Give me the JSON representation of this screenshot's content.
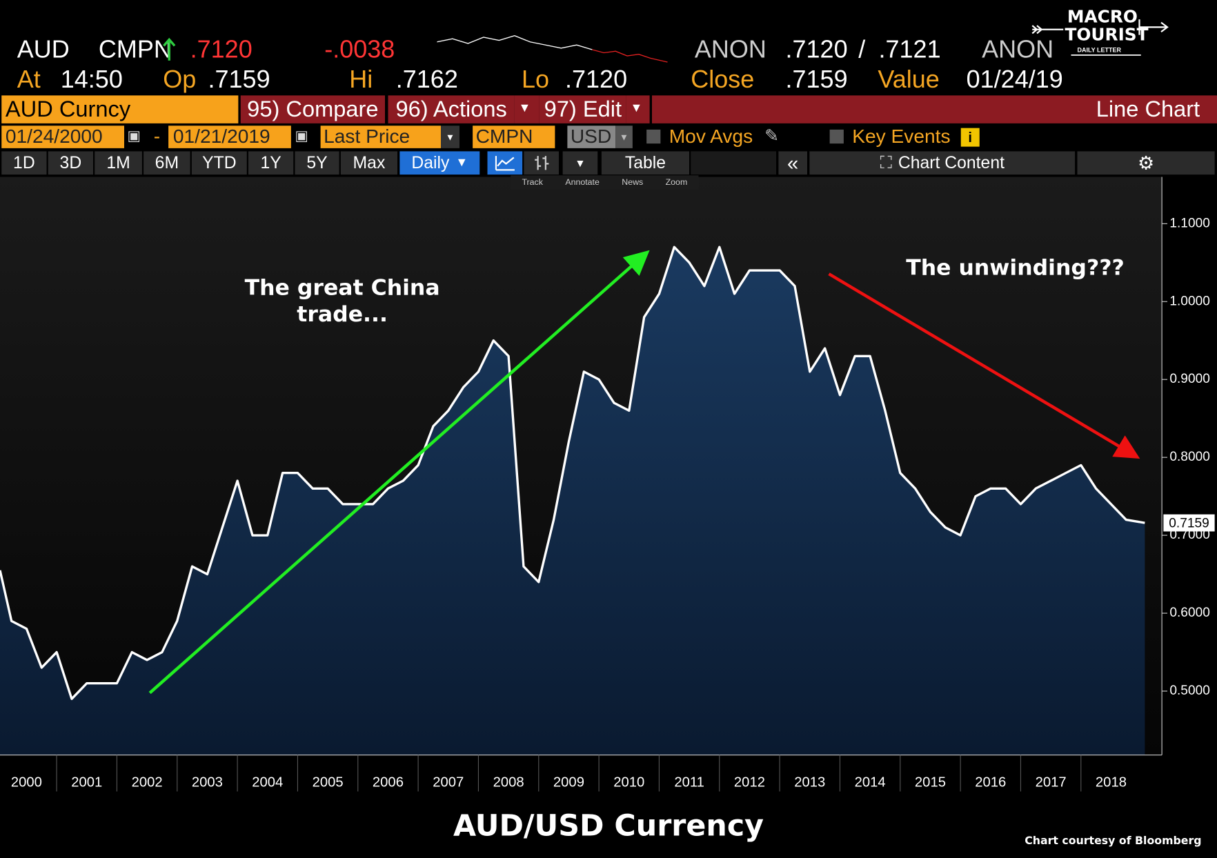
{
  "header": {
    "ticker": "AUD",
    "source": "CMPN",
    "last": ".7120",
    "change": "-.0038",
    "bid_source": "ANON",
    "bid": ".7120",
    "separator": "/",
    "ask": ".7121",
    "ask_source": "ANON",
    "at_label": "At",
    "time": "14:50",
    "op_label": "Op",
    "open": ".7159",
    "hi_label": "Hi",
    "high": ".7162",
    "lo_label": "Lo",
    "low": ".7120",
    "close_label": "Close",
    "close": ".7159",
    "value_label": "Value",
    "date": "01/24/19"
  },
  "logo": {
    "line1": "MACRO",
    "line2": "TOURIST",
    "tag": "DAILY LETTER"
  },
  "toolbar1": {
    "security": "AUD Curncy",
    "compare": "95) Compare",
    "actions": "96) Actions",
    "edit": "97) Edit",
    "view": "Line Chart"
  },
  "toolbar2": {
    "start": "01/24/2000",
    "dash": "-",
    "end": "01/21/2019",
    "field": "Last Price",
    "source": "CMPN",
    "currency": "USD",
    "mov_avgs": "Mov Avgs",
    "key_events": "Key Events"
  },
  "toolbar3": {
    "ranges": [
      "1D",
      "3D",
      "1M",
      "6M",
      "YTD",
      "1Y",
      "5Y",
      "Max"
    ],
    "frequency": "Daily",
    "table": "Table",
    "chart_content": "Chart Content"
  },
  "tools": [
    "Track",
    "Annotate",
    "News",
    "Zoom"
  ],
  "chart_data": {
    "type": "line",
    "title": "AUD/USD Currency",
    "annotations": [
      "The great China trade...",
      "The unwinding???"
    ],
    "credit": "Chart courtesy of Bloomberg",
    "x": [
      2000.06,
      2000.25,
      2000.5,
      2000.75,
      2001,
      2001.25,
      2001.5,
      2001.75,
      2002,
      2002.25,
      2002.5,
      2002.75,
      2003,
      2003.25,
      2003.5,
      2003.75,
      2004,
      2004.25,
      2004.5,
      2004.75,
      2005,
      2005.25,
      2005.5,
      2005.75,
      2006,
      2006.25,
      2006.5,
      2006.75,
      2007,
      2007.25,
      2007.5,
      2007.75,
      2008,
      2008.25,
      2008.5,
      2008.75,
      2009,
      2009.25,
      2009.5,
      2009.75,
      2010,
      2010.25,
      2010.5,
      2010.75,
      2011,
      2011.25,
      2011.5,
      2011.75,
      2012,
      2012.25,
      2012.5,
      2012.75,
      2013,
      2013.25,
      2013.5,
      2013.75,
      2014,
      2014.25,
      2014.5,
      2014.75,
      2015,
      2015.25,
      2015.5,
      2015.75,
      2016,
      2016.25,
      2016.5,
      2016.75,
      2017,
      2017.25,
      2017.5,
      2017.75,
      2018,
      2018.25,
      2018.5,
      2018.75,
      2019.06
    ],
    "series": [
      {
        "name": "AUD",
        "color": "#ffffff",
        "values": [
          0.655,
          0.59,
          0.58,
          0.53,
          0.55,
          0.49,
          0.51,
          0.51,
          0.51,
          0.55,
          0.54,
          0.55,
          0.59,
          0.66,
          0.65,
          0.71,
          0.77,
          0.7,
          0.7,
          0.78,
          0.78,
          0.76,
          0.76,
          0.74,
          0.74,
          0.74,
          0.76,
          0.77,
          0.79,
          0.84,
          0.86,
          0.89,
          0.91,
          0.95,
          0.93,
          0.66,
          0.64,
          0.72,
          0.82,
          0.91,
          0.9,
          0.87,
          0.86,
          0.98,
          1.01,
          1.07,
          1.05,
          1.02,
          1.07,
          1.01,
          1.04,
          1.04,
          1.04,
          1.02,
          0.91,
          0.94,
          0.88,
          0.93,
          0.93,
          0.86,
          0.78,
          0.76,
          0.73,
          0.71,
          0.7,
          0.75,
          0.76,
          0.76,
          0.74,
          0.76,
          0.77,
          0.78,
          0.79,
          0.76,
          0.74,
          0.72,
          0.7159
        ]
      }
    ],
    "xlim": [
      2000.06,
      2019.06
    ],
    "xticks": [
      2000,
      2001,
      2002,
      2003,
      2004,
      2005,
      2006,
      2007,
      2008,
      2009,
      2010,
      2011,
      2012,
      2013,
      2014,
      2015,
      2016,
      2017,
      2018
    ],
    "ylim": [
      0.418,
      1.16
    ],
    "yticks": [
      {
        "value": 0.5,
        "label": "0.5000"
      },
      {
        "value": 0.6,
        "label": "0.6000"
      },
      {
        "value": 0.7,
        "label": "0.7000"
      },
      {
        "value": 0.8,
        "label": "0.8000"
      },
      {
        "value": 0.9,
        "label": "0.9000"
      },
      {
        "value": 1.0,
        "label": "1.0000"
      },
      {
        "value": 1.1,
        "label": "1.1000"
      }
    ],
    "area_color": "#0f2a4a"
  }
}
